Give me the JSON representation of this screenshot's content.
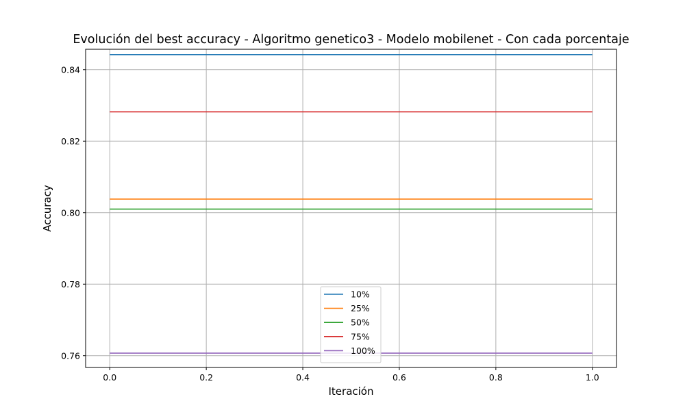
{
  "chart_data": {
    "type": "line",
    "title": "Evolución del best accuracy - Algoritmo genetico3 - Modelo mobilenet - Con cada porcentaje",
    "xlabel": "Iteración",
    "ylabel": "Accuracy",
    "xlim": [
      -0.05,
      1.05
    ],
    "ylim": [
      0.7567,
      0.8457
    ],
    "xticks": [
      0.0,
      0.2,
      0.4,
      0.6,
      0.8,
      1.0
    ],
    "xtick_labels": [
      "0.0",
      "0.2",
      "0.4",
      "0.6",
      "0.8",
      "1.0"
    ],
    "yticks": [
      0.76,
      0.78,
      0.8,
      0.82,
      0.84
    ],
    "ytick_labels": [
      "0.76",
      "0.78",
      "0.80",
      "0.82",
      "0.84"
    ],
    "grid": true,
    "legend_position": "lower-center",
    "x": [
      0.0,
      1.0
    ],
    "series": [
      {
        "name": "10%",
        "color": "#1f77b4",
        "values": [
          0.8442,
          0.8442
        ]
      },
      {
        "name": "25%",
        "color": "#ff7f0e",
        "values": [
          0.8038,
          0.8038
        ]
      },
      {
        "name": "50%",
        "color": "#2ca02c",
        "values": [
          0.801,
          0.801
        ]
      },
      {
        "name": "75%",
        "color": "#d62728",
        "values": [
          0.8282,
          0.8282
        ]
      },
      {
        "name": "100%",
        "color": "#9467bd",
        "values": [
          0.7607,
          0.7607
        ]
      }
    ]
  }
}
